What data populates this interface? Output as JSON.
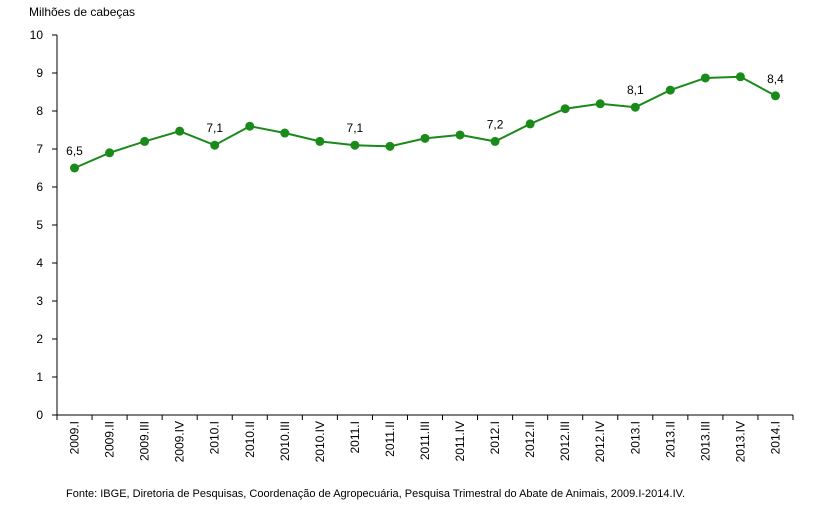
{
  "chart_data": {
    "type": "line",
    "ylabel": "Milhões de cabeças",
    "xlabel": "",
    "ylim": [
      0,
      10
    ],
    "yticks": [
      0,
      1,
      2,
      3,
      4,
      5,
      6,
      7,
      8,
      9,
      10
    ],
    "categories": [
      "2009.I",
      "2009.II",
      "2009.III",
      "2009.IV",
      "2010.I",
      "2010.II",
      "2010.III",
      "2010.IV",
      "2011.I",
      "2011.II",
      "2011.III",
      "2011.IV",
      "2012.I",
      "2012.II",
      "2012.III",
      "2012.IV",
      "2013.I",
      "2013.II",
      "2013.III",
      "2013.IV",
      "2014.I"
    ],
    "series": [
      {
        "values": [
          6.5,
          6.9,
          7.2,
          7.47,
          7.1,
          7.6,
          7.42,
          7.2,
          7.1,
          7.07,
          7.28,
          7.37,
          7.2,
          7.66,
          8.06,
          8.19,
          8.1,
          8.55,
          8.87,
          8.9,
          8.4
        ],
        "color": "#1a8a1a"
      }
    ],
    "data_labels": [
      {
        "index": 0,
        "text": "6,5"
      },
      {
        "index": 4,
        "text": "7,1"
      },
      {
        "index": 8,
        "text": "7,1"
      },
      {
        "index": 12,
        "text": "7,2"
      },
      {
        "index": 16,
        "text": "8,1"
      },
      {
        "index": 20,
        "text": "8,4"
      }
    ],
    "grid": false,
    "legend": "none"
  },
  "source_note": "Fonte: IBGE, Diretoria de Pesquisas, Coordenação de Agropecuária, Pesquisa Trimestral do Abate de Animais, 2009.I-2014.IV."
}
